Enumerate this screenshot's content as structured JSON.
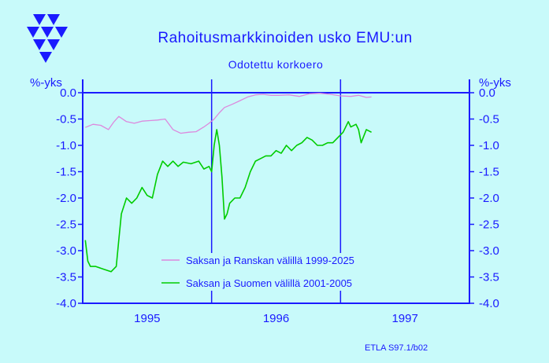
{
  "colors": {
    "background": "#c8fafa",
    "text": "#1a1aff",
    "axis": "#1a1aff",
    "series_germany_france": "#dd88dd",
    "series_germany_finland": "#00cc00",
    "logo": "#1a1aff"
  },
  "logo": {
    "icon": "etla-triangle-logo-icon"
  },
  "credit": "ETLA S97.1/b02",
  "chart_data": {
    "type": "line",
    "title": "Rahoitusmarkkinoiden  usko  EMU:un",
    "subtitle": "Odotettu  korkoero",
    "ylabel_left": "%-yks",
    "ylabel_right": "%-yks",
    "ylim": [
      -4.0,
      0.0
    ],
    "y_ticks": [
      "0.0",
      "-0.5",
      "-1.0",
      "-1.5",
      "-2.0",
      "-2.5",
      "-3.0",
      "-3.5",
      "-4.0"
    ],
    "y_tick_values": [
      0.0,
      -0.5,
      -1.0,
      -1.5,
      -2.0,
      -2.5,
      -3.0,
      -3.5,
      -4.0
    ],
    "x_ticks": [
      "1995",
      "1996",
      "1997"
    ],
    "xlim": [
      1994.5,
      1997.5
    ],
    "x_dividers": [
      1995.5,
      1996.5
    ],
    "grid": false,
    "legend_position": "bottom-center",
    "series": [
      {
        "name": "Saksan ja Ranskan välillä 1999-2025",
        "color": "#dd88dd",
        "x": [
          1994.52,
          1994.58,
          1994.64,
          1994.7,
          1994.74,
          1994.78,
          1994.84,
          1994.9,
          1994.96,
          1995.02,
          1995.08,
          1995.14,
          1995.2,
          1995.26,
          1995.32,
          1995.38,
          1995.44,
          1995.48,
          1995.52,
          1995.56,
          1995.6,
          1995.66,
          1995.72,
          1995.78,
          1995.84,
          1995.9,
          1995.96,
          1996.02,
          1996.1,
          1996.18,
          1996.26,
          1996.34,
          1996.42,
          1996.5,
          1996.58,
          1996.64,
          1996.7,
          1996.74
        ],
        "values": [
          -0.66,
          -0.6,
          -0.62,
          -0.7,
          -0.56,
          -0.45,
          -0.55,
          -0.58,
          -0.54,
          -0.53,
          -0.52,
          -0.5,
          -0.7,
          -0.77,
          -0.75,
          -0.74,
          -0.65,
          -0.58,
          -0.5,
          -0.38,
          -0.28,
          -0.22,
          -0.15,
          -0.08,
          -0.04,
          -0.03,
          -0.05,
          -0.05,
          -0.04,
          -0.07,
          -0.02,
          -0.01,
          -0.03,
          -0.06,
          -0.07,
          -0.05,
          -0.09,
          -0.08
        ]
      },
      {
        "name": "Saksan ja Suomen välillä 2001-2005",
        "color": "#00cc00",
        "x": [
          1994.52,
          1994.54,
          1994.56,
          1994.6,
          1994.66,
          1994.72,
          1994.76,
          1994.78,
          1994.8,
          1994.84,
          1994.88,
          1994.92,
          1994.96,
          1995.0,
          1995.04,
          1995.08,
          1995.12,
          1995.16,
          1995.2,
          1995.24,
          1995.28,
          1995.34,
          1995.4,
          1995.44,
          1995.48,
          1995.5,
          1995.52,
          1995.54,
          1995.56,
          1995.58,
          1995.6,
          1995.62,
          1995.64,
          1995.68,
          1995.72,
          1995.76,
          1995.8,
          1995.84,
          1995.88,
          1995.92,
          1995.96,
          1996.0,
          1996.04,
          1996.08,
          1996.12,
          1996.16,
          1996.2,
          1996.24,
          1996.28,
          1996.32,
          1996.36,
          1996.4,
          1996.44,
          1996.48,
          1996.52,
          1996.56,
          1996.58,
          1996.62,
          1996.64,
          1996.66,
          1996.7,
          1996.74
        ],
        "values": [
          -2.8,
          -3.2,
          -3.3,
          -3.3,
          -3.35,
          -3.4,
          -3.3,
          -2.8,
          -2.3,
          -2.0,
          -2.1,
          -2.0,
          -1.8,
          -1.95,
          -2.0,
          -1.55,
          -1.3,
          -1.4,
          -1.3,
          -1.4,
          -1.32,
          -1.35,
          -1.3,
          -1.45,
          -1.4,
          -1.5,
          -1.0,
          -0.7,
          -1.0,
          -1.6,
          -2.4,
          -2.3,
          -2.1,
          -2.0,
          -2.0,
          -1.8,
          -1.5,
          -1.3,
          -1.25,
          -1.2,
          -1.2,
          -1.1,
          -1.15,
          -1.0,
          -1.1,
          -1.0,
          -0.95,
          -0.85,
          -0.9,
          -1.0,
          -1.0,
          -0.95,
          -0.95,
          -0.85,
          -0.75,
          -0.55,
          -0.65,
          -0.6,
          -0.7,
          -0.95,
          -0.7,
          -0.75
        ]
      }
    ]
  }
}
